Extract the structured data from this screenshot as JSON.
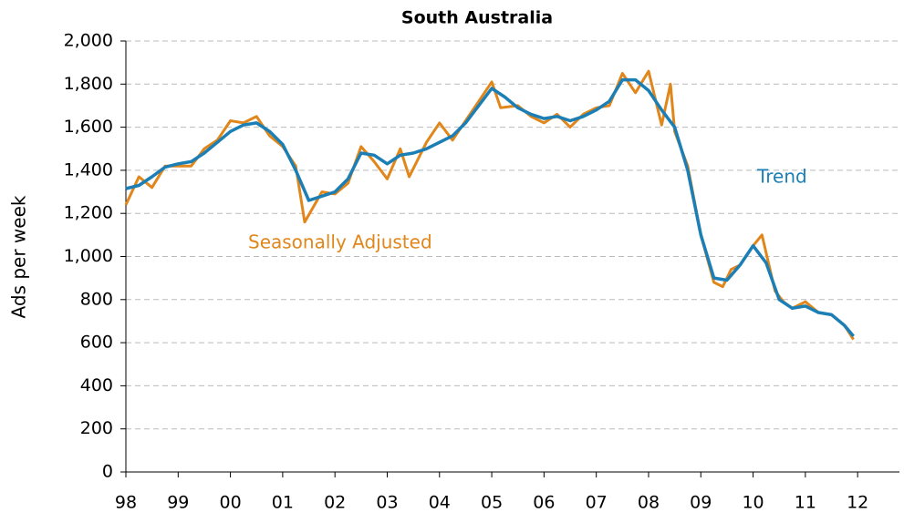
{
  "chart_data": {
    "type": "line",
    "title": "South Australia",
    "ylabel": "Ads per week",
    "annotations": [
      "Seasonally Adjusted",
      "Trend"
    ],
    "xlim": [
      1998,
      2012.8
    ],
    "xticks": [
      {
        "value": 1998,
        "label": "98"
      },
      {
        "value": 1999,
        "label": "99"
      },
      {
        "value": 2000,
        "label": "00"
      },
      {
        "value": 2001,
        "label": "01"
      },
      {
        "value": 2002,
        "label": "02"
      },
      {
        "value": 2003,
        "label": "03"
      },
      {
        "value": 2004,
        "label": "04"
      },
      {
        "value": 2005,
        "label": "05"
      },
      {
        "value": 2006,
        "label": "06"
      },
      {
        "value": 2007,
        "label": "07"
      },
      {
        "value": 2008,
        "label": "08"
      },
      {
        "value": 2009,
        "label": "09"
      },
      {
        "value": 2010,
        "label": "10"
      },
      {
        "value": 2011,
        "label": "11"
      },
      {
        "value": 2012,
        "label": "12"
      }
    ],
    "ylim": [
      0,
      2000
    ],
    "yticks": [
      0,
      200,
      400,
      600,
      800,
      {
        "value": 1000,
        "label": "1,000"
      },
      {
        "value": 1200,
        "label": "1,200"
      },
      {
        "value": 1400,
        "label": "1,400"
      },
      {
        "value": 1600,
        "label": "1,600"
      },
      {
        "value": 1800,
        "label": "1,800"
      },
      {
        "value": 2000,
        "label": "2,000"
      }
    ],
    "grid": true,
    "series": [
      {
        "name": "Seasonally Adjusted",
        "color": "#e0861a",
        "x": [
          1998.0,
          1998.25,
          1998.5,
          1998.75,
          1999.0,
          1999.25,
          1999.5,
          1999.75,
          2000.0,
          2000.25,
          2000.5,
          2000.75,
          2001.0,
          2001.25,
          2001.42,
          2001.75,
          2002.0,
          2002.25,
          2002.5,
          2002.75,
          2003.0,
          2003.25,
          2003.42,
          2003.75,
          2004.0,
          2004.25,
          2004.5,
          2004.75,
          2005.0,
          2005.17,
          2005.5,
          2005.75,
          2006.0,
          2006.25,
          2006.5,
          2006.75,
          2007.0,
          2007.25,
          2007.5,
          2007.75,
          2008.0,
          2008.25,
          2008.42,
          2008.5,
          2008.75,
          2009.0,
          2009.25,
          2009.42,
          2009.58,
          2009.75,
          2010.0,
          2010.17,
          2010.42,
          2010.58,
          2010.75,
          2011.0,
          2011.25,
          2011.5,
          2011.75,
          2011.92
        ],
        "values": [
          1240,
          1370,
          1320,
          1420,
          1420,
          1420,
          1500,
          1540,
          1630,
          1620,
          1650,
          1560,
          1510,
          1420,
          1160,
          1300,
          1290,
          1340,
          1510,
          1440,
          1360,
          1500,
          1370,
          1530,
          1620,
          1540,
          1630,
          1720,
          1810,
          1690,
          1700,
          1650,
          1620,
          1660,
          1600,
          1660,
          1690,
          1700,
          1850,
          1760,
          1860,
          1610,
          1800,
          1580,
          1420,
          1100,
          880,
          860,
          940,
          960,
          1050,
          1100,
          840,
          790,
          760,
          790,
          740,
          730,
          680,
          615
        ]
      },
      {
        "name": "Trend",
        "color": "#1b7fb5",
        "x": [
          1998.0,
          1998.25,
          1998.5,
          1998.75,
          1999.0,
          1999.25,
          1999.5,
          1999.75,
          2000.0,
          2000.25,
          2000.5,
          2000.75,
          2001.0,
          2001.25,
          2001.5,
          2001.75,
          2002.0,
          2002.25,
          2002.5,
          2002.75,
          2003.0,
          2003.25,
          2003.5,
          2003.75,
          2004.0,
          2004.25,
          2004.5,
          2004.75,
          2005.0,
          2005.25,
          2005.5,
          2005.75,
          2006.0,
          2006.25,
          2006.5,
          2006.75,
          2007.0,
          2007.25,
          2007.5,
          2007.75,
          2008.0,
          2008.25,
          2008.5,
          2008.75,
          2009.0,
          2009.25,
          2009.5,
          2009.75,
          2010.0,
          2010.25,
          2010.5,
          2010.75,
          2011.0,
          2011.25,
          2011.5,
          2011.75,
          2011.92
        ],
        "values": [
          1315,
          1330,
          1370,
          1415,
          1430,
          1440,
          1480,
          1530,
          1580,
          1610,
          1620,
          1580,
          1520,
          1400,
          1260,
          1280,
          1300,
          1360,
          1480,
          1470,
          1430,
          1470,
          1480,
          1500,
          1530,
          1560,
          1620,
          1700,
          1780,
          1740,
          1690,
          1660,
          1640,
          1650,
          1630,
          1650,
          1680,
          1720,
          1820,
          1820,
          1770,
          1680,
          1600,
          1400,
          1100,
          900,
          890,
          960,
          1050,
          970,
          800,
          760,
          770,
          740,
          730,
          680,
          630
        ]
      }
    ]
  }
}
